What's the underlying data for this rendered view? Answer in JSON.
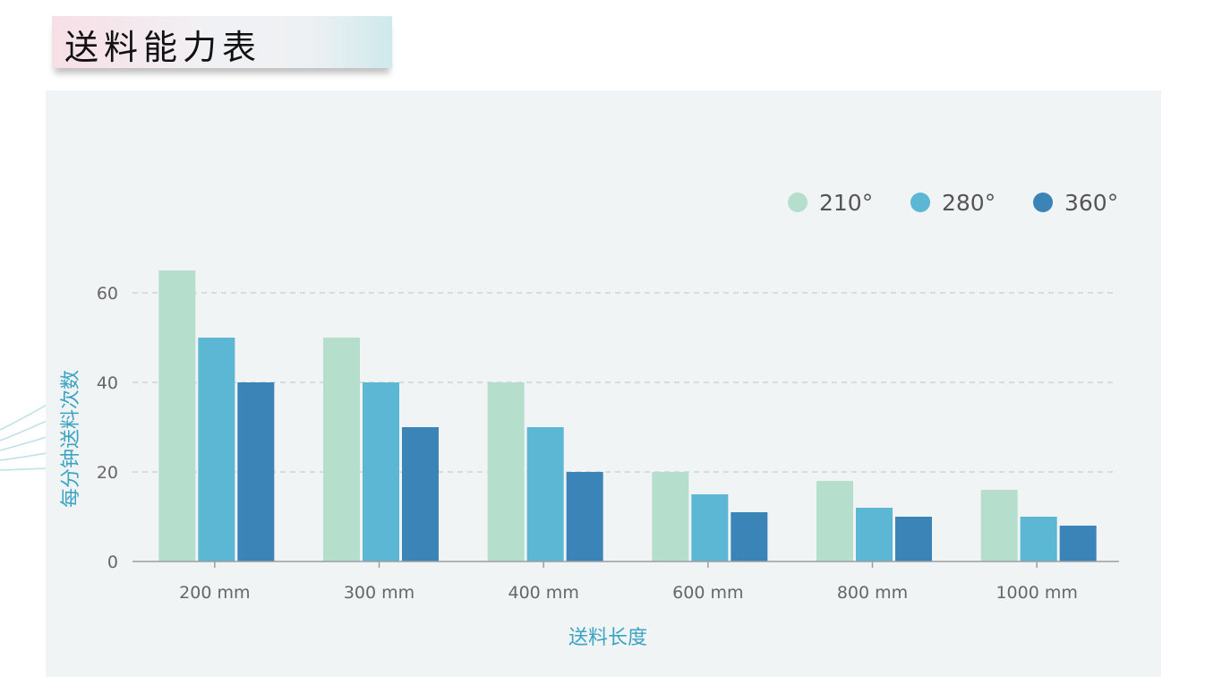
{
  "page": {
    "title": "送料能力表"
  },
  "chart_data": {
    "type": "bar",
    "categories": [
      "200 mm",
      "300 mm",
      "400 mm",
      "600 mm",
      "800 mm",
      "1000 mm"
    ],
    "series": [
      {
        "name": "210°",
        "color": "#b5dfcc",
        "values": [
          65,
          50,
          40,
          20,
          18,
          16
        ]
      },
      {
        "name": "280°",
        "color": "#5bb7d3",
        "values": [
          50,
          40,
          30,
          15,
          12,
          10
        ]
      },
      {
        "name": "360°",
        "color": "#3a84b8",
        "values": [
          40,
          30,
          20,
          11,
          10,
          8
        ]
      }
    ],
    "ylim": [
      0,
      65
    ],
    "yticks": [
      0,
      20,
      40,
      60
    ],
    "xlabel": "送料长度",
    "ylabel": "每分钟送料次数",
    "grid": true,
    "legend": "top-right"
  }
}
